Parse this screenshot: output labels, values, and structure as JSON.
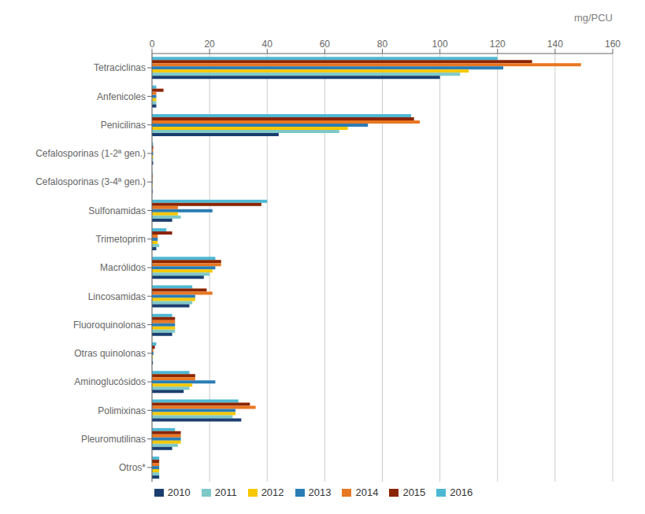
{
  "chart_data": {
    "type": "bar",
    "orientation": "horizontal",
    "xlabel": "mg/PCU",
    "categories": [
      "Tetraciclinas",
      "Anfenicoles",
      "Penicilinas",
      "Cefalosporinas (1-2ª gen.)",
      "Cefalosporinas (3-4ª gen.)",
      "Sulfonamidas",
      "Trimetoprim",
      "Macrólidos",
      "Lincosamidas",
      "Fluoroquinolonas",
      "Otras quinolonas",
      "Aminoglucósidos",
      "Polimixinas",
      "Pleuromutilinas",
      "Otros*"
    ],
    "series": [
      {
        "name": "2010",
        "color": "#1a3f6f",
        "values": [
          100,
          1.5,
          44,
          0.4,
          0.2,
          7,
          1.5,
          18,
          13,
          7,
          0.3,
          11,
          31,
          7,
          2.5
        ]
      },
      {
        "name": "2011",
        "color": "#7ec8c8",
        "values": [
          107,
          1.5,
          65,
          0.4,
          0.2,
          10,
          2.5,
          20,
          14,
          8,
          0.3,
          13,
          28,
          9,
          2.5
        ]
      },
      {
        "name": "2012",
        "color": "#f5c800",
        "values": [
          110,
          1.5,
          68,
          0.4,
          0.2,
          9,
          2.0,
          21,
          15,
          8,
          0.3,
          14,
          29,
          10,
          2.5
        ]
      },
      {
        "name": "2013",
        "color": "#2a7db5",
        "values": [
          122,
          1.5,
          75,
          0.4,
          0.2,
          21,
          2.0,
          22,
          15,
          8,
          0.5,
          22,
          29,
          10,
          2.5
        ]
      },
      {
        "name": "2014",
        "color": "#e87722",
        "values": [
          149,
          1.5,
          93,
          0.4,
          0.2,
          9,
          2.0,
          24,
          21,
          8,
          0.5,
          15,
          36,
          10,
          2.5
        ]
      },
      {
        "name": "2015",
        "color": "#8b2500",
        "values": [
          132,
          4.0,
          91,
          0.4,
          0.2,
          38,
          7.0,
          24,
          19,
          8,
          1.0,
          15,
          34,
          10,
          2.5
        ]
      },
      {
        "name": "2016",
        "color": "#4db8d4",
        "values": [
          120,
          1.5,
          90,
          0.4,
          0.2,
          40,
          5.0,
          22,
          14,
          7,
          1.5,
          13,
          30,
          8,
          2.5
        ]
      }
    ],
    "xlim": [
      0,
      160
    ],
    "xticks": [
      0,
      20,
      40,
      60,
      80,
      100,
      120,
      140,
      160
    ],
    "grid": true,
    "legend": "bottom"
  }
}
